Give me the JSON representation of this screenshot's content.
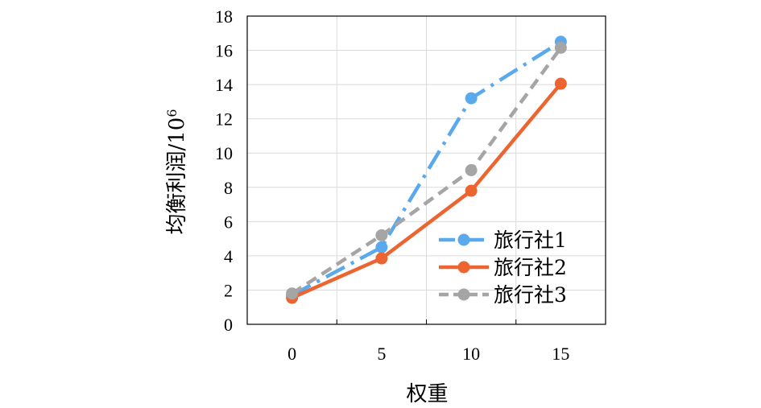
{
  "chart_data": {
    "type": "line",
    "x": [
      0,
      5,
      10,
      15
    ],
    "xticks": [
      "0",
      "5",
      "10",
      "15"
    ],
    "yticks": [
      "0",
      "2",
      "4",
      "6",
      "8",
      "10",
      "12",
      "14",
      "16",
      "18"
    ],
    "xlabel": "权重",
    "ylabel": "均衡利润/10",
    "ylabel_superscript": "6",
    "xlim": [
      -2.5,
      17.5
    ],
    "ylim": [
      0,
      18
    ],
    "grid": true,
    "legend_position": "right-middle",
    "series": [
      {
        "name": "旅行社1",
        "color": "#5aa9ec",
        "dash": "dashdot",
        "values": [
          1.7,
          4.5,
          13.2,
          16.5
        ]
      },
      {
        "name": "旅行社2",
        "color": "#ec6531",
        "dash": "solid",
        "values": [
          1.55,
          3.85,
          7.8,
          14.05
        ]
      },
      {
        "name": "旅行社3",
        "color": "#a5a5a5",
        "dash": "dash",
        "values": [
          1.8,
          5.2,
          9.0,
          16.15
        ]
      }
    ]
  }
}
